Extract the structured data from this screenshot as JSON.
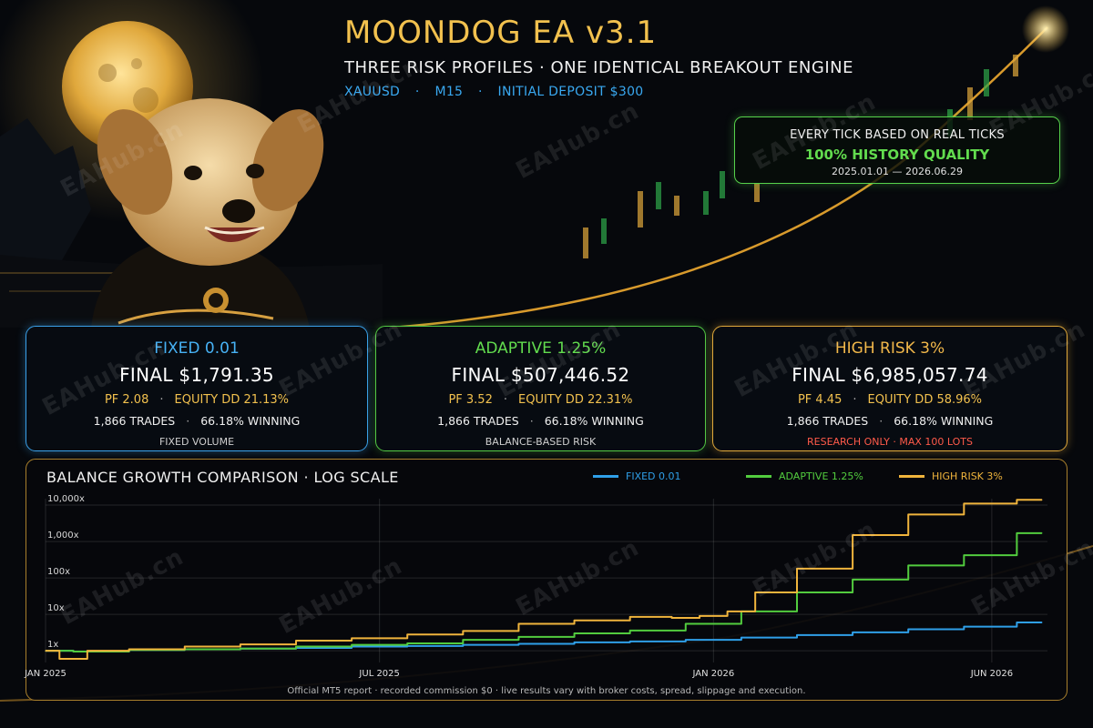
{
  "header": {
    "title": "MOONDOG EA v3.1",
    "subtitle": "THREE RISK PROFILES · ONE IDENTICAL BREAKOUT ENGINE",
    "meta": {
      "symbol": "XAUUSD",
      "timeframe": "M15",
      "deposit": "INITIAL DEPOSIT $300"
    }
  },
  "tickbox": {
    "line1": "EVERY TICK BASED ON REAL TICKS",
    "line2": "100% HISTORY QUALITY",
    "line3": "2025.01.01 — 2026.06.29"
  },
  "cards": [
    {
      "title": "FIXED 0.01",
      "final": "FINAL $1,791.35",
      "pf": "PF 2.08",
      "dd": "EQUITY DD 21.13%",
      "trades": "1,866 TRADES",
      "winning": "66.18% WINNING",
      "note": "FIXED VOLUME"
    },
    {
      "title": "ADAPTIVE 1.25%",
      "final": "FINAL $507,446.52",
      "pf": "PF 3.52",
      "dd": "EQUITY DD 22.31%",
      "trades": "1,866 TRADES",
      "winning": "66.18% WINNING",
      "note": "BALANCE-BASED RISK"
    },
    {
      "title": "HIGH RISK 3%",
      "final": "FINAL $6,985,057.74",
      "pf": "PF 4.45",
      "dd": "EQUITY DD 58.96%",
      "trades": "1,866 TRADES",
      "winning": "66.18% WINNING",
      "note": "RESEARCH ONLY · MAX 100 LOTS"
    }
  ],
  "chart_data": {
    "type": "line",
    "title": "BALANCE GROWTH COMPARISON · LOG SCALE",
    "yscale": "log",
    "ylim": [
      0.6,
      15000
    ],
    "y_ticks": [
      {
        "value": 1,
        "label": "1x"
      },
      {
        "value": 10,
        "label": "10x"
      },
      {
        "value": 100,
        "label": "100x"
      },
      {
        "value": 1000,
        "label": "1,000x"
      },
      {
        "value": 10000,
        "label": "10,000x"
      }
    ],
    "x_ticks": [
      "JAN 2025",
      "JUL 2025",
      "JAN 2026",
      "JUN 2026"
    ],
    "x_tick_months": [
      0,
      6,
      12,
      17
    ],
    "x_range_months": [
      0,
      18
    ],
    "grid": true,
    "legend_position": "top-right",
    "series": [
      {
        "name": "FIXED 0.01",
        "color": "#2f9fe8",
        "x": [
          0,
          1,
          2,
          3,
          4,
          5,
          6,
          7,
          8,
          9,
          10,
          11,
          12,
          13,
          14,
          15,
          16,
          17,
          17.9
        ],
        "y": [
          1,
          0.95,
          1.05,
          1.1,
          1.15,
          1.2,
          1.3,
          1.35,
          1.45,
          1.55,
          1.7,
          1.8,
          2.0,
          2.3,
          2.7,
          3.2,
          3.9,
          4.6,
          6.0
        ]
      },
      {
        "name": "ADAPTIVE 1.25%",
        "color": "#52cc3e",
        "x": [
          0,
          1,
          2,
          3,
          4,
          5,
          6,
          7,
          8,
          9,
          10,
          11,
          12,
          13,
          14,
          15,
          16,
          17,
          17.9
        ],
        "y": [
          1,
          0.95,
          1.05,
          1.1,
          1.15,
          1.3,
          1.45,
          1.6,
          2.0,
          2.4,
          3.0,
          3.6,
          5.5,
          12,
          40,
          90,
          220,
          420,
          1700
        ]
      },
      {
        "name": "HIGH RISK 3%",
        "color": "#f0b43c",
        "x": [
          0,
          0.5,
          1,
          2,
          3,
          4,
          5,
          6,
          7,
          8,
          9,
          10,
          11,
          11.5,
          12,
          12.5,
          13,
          14,
          15,
          16,
          17,
          17.9
        ],
        "y": [
          1,
          0.6,
          1.0,
          1.1,
          1.3,
          1.5,
          1.9,
          2.2,
          2.8,
          3.5,
          5.5,
          6.8,
          8.5,
          8.0,
          9.0,
          12,
          40,
          180,
          1500,
          5500,
          11000,
          14000
        ]
      }
    ]
  },
  "footnote": "Official MT5 report · recorded commission $0 · live results vary with broker costs, spread, slippage and execution.",
  "watermark": "EAHub.cn"
}
